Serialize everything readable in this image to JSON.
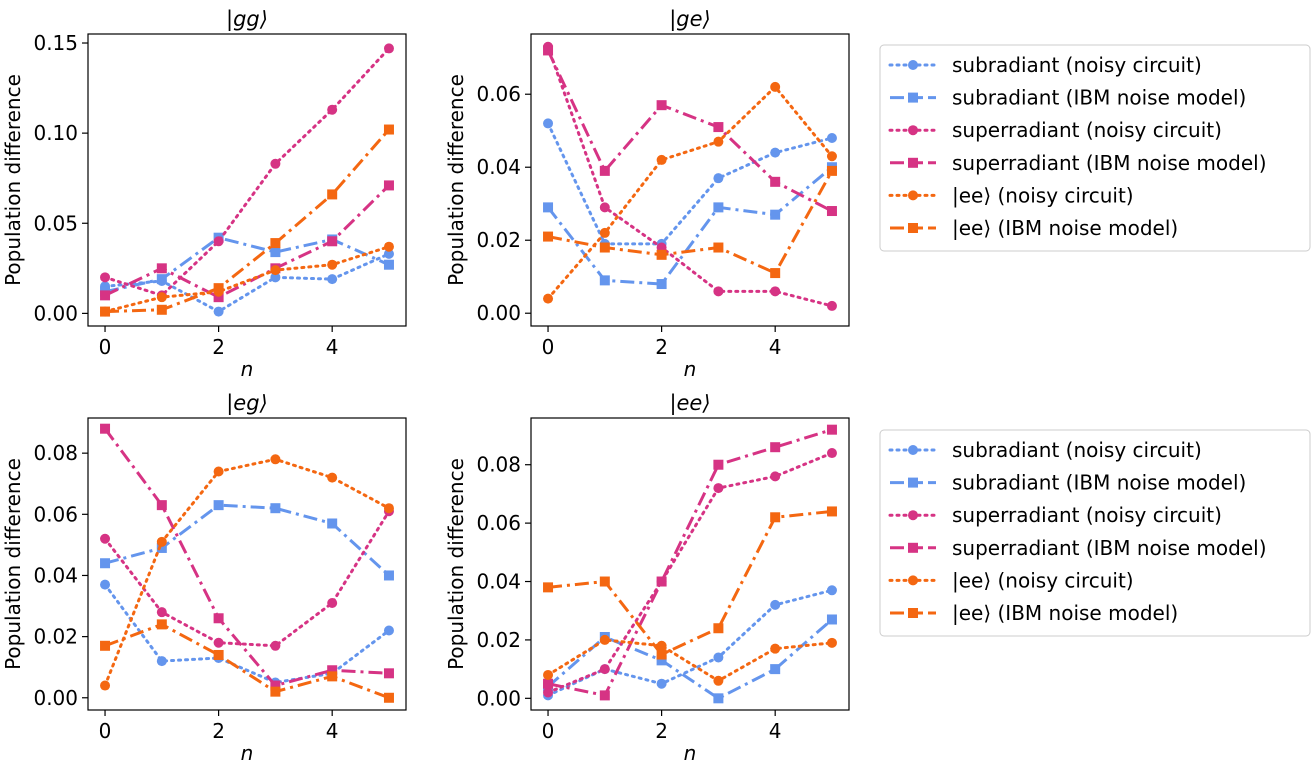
{
  "colors": {
    "subradiant": "#6495ED",
    "superradiant": "#D63384",
    "ee": "#F46711"
  },
  "legend": {
    "items": [
      {
        "label": "subradiant (noisy circuit)",
        "color": "#6495ED",
        "style": "dotted",
        "marker": "circle"
      },
      {
        "label": "subradiant (IBM noise model)",
        "color": "#6495ED",
        "style": "dashed",
        "marker": "square"
      },
      {
        "label": "superradiant (noisy circuit)",
        "color": "#D63384",
        "style": "dotted",
        "marker": "circle"
      },
      {
        "label": "superradiant (IBM noise model)",
        "color": "#D63384",
        "style": "dashed",
        "marker": "square"
      },
      {
        "label": "|ee⟩ (noisy circuit)",
        "color": "#F46711",
        "style": "dotted",
        "marker": "circle"
      },
      {
        "label": "|ee⟩ (IBM noise model)",
        "color": "#F46711",
        "style": "dashed",
        "marker": "square"
      }
    ]
  },
  "chart_data": [
    {
      "type": "line",
      "title": "|gg⟩",
      "xlabel": "n",
      "ylabel": "Population difference",
      "x": [
        0,
        1,
        2,
        3,
        4,
        5
      ],
      "xticks": [
        0,
        2,
        4
      ],
      "xlim": [
        -0.3,
        5.3
      ],
      "ylim": [
        -0.007,
        0.155
      ],
      "yticks": [
        "0.00",
        "0.05",
        "0.10",
        "0.15"
      ],
      "ytick_values": [
        0,
        0.05,
        0.1,
        0.15
      ],
      "series": [
        {
          "name": "subradiant (noisy circuit)",
          "color": "#6495ED",
          "style": "dotted",
          "marker": "circle",
          "values": [
            0.015,
            0.018,
            0.001,
            0.02,
            0.019,
            0.033
          ]
        },
        {
          "name": "subradiant (IBM noise model)",
          "color": "#6495ED",
          "style": "dashed",
          "marker": "square",
          "values": [
            0.012,
            0.019,
            0.042,
            0.034,
            0.041,
            0.027
          ]
        },
        {
          "name": "superradiant (noisy circuit)",
          "color": "#D63384",
          "style": "dotted",
          "marker": "circle",
          "values": [
            0.02,
            0.01,
            0.04,
            0.083,
            0.113,
            0.147
          ]
        },
        {
          "name": "superradiant (IBM noise model)",
          "color": "#D63384",
          "style": "dashed",
          "marker": "square",
          "values": [
            0.01,
            0.025,
            0.009,
            0.025,
            0.04,
            0.071
          ]
        },
        {
          "name": "|ee⟩ (noisy circuit)",
          "color": "#F46711",
          "style": "dotted",
          "marker": "circle",
          "values": [
            0.001,
            0.009,
            0.012,
            0.024,
            0.027,
            0.037
          ]
        },
        {
          "name": "|ee⟩ (IBM noise model)",
          "color": "#F46711",
          "style": "dashed",
          "marker": "square",
          "values": [
            0.001,
            0.002,
            0.014,
            0.039,
            0.066,
            0.102
          ]
        }
      ]
    },
    {
      "type": "line",
      "title": "|ge⟩",
      "xlabel": "n",
      "ylabel": "Population difference",
      "x": [
        0,
        1,
        2,
        3,
        4,
        5
      ],
      "xticks": [
        0,
        2,
        4
      ],
      "xlim": [
        -0.3,
        5.3
      ],
      "ylim": [
        -0.0035,
        0.0765
      ],
      "yticks": [
        "0.00",
        "0.02",
        "0.04",
        "0.06"
      ],
      "ytick_values": [
        0,
        0.02,
        0.04,
        0.06
      ],
      "series": [
        {
          "name": "subradiant (noisy circuit)",
          "color": "#6495ED",
          "style": "dotted",
          "marker": "circle",
          "values": [
            0.052,
            0.019,
            0.019,
            0.037,
            0.044,
            0.048
          ]
        },
        {
          "name": "subradiant (IBM noise model)",
          "color": "#6495ED",
          "style": "dashed",
          "marker": "square",
          "values": [
            0.029,
            0.009,
            0.008,
            0.029,
            0.027,
            0.04
          ]
        },
        {
          "name": "superradiant (noisy circuit)",
          "color": "#D63384",
          "style": "dotted",
          "marker": "circle",
          "values": [
            0.073,
            0.029,
            0.018,
            0.006,
            0.006,
            0.002
          ]
        },
        {
          "name": "superradiant (IBM noise model)",
          "color": "#D63384",
          "style": "dashed",
          "marker": "square",
          "values": [
            0.072,
            0.039,
            0.057,
            0.051,
            0.036,
            0.028
          ]
        },
        {
          "name": "|ee⟩ (noisy circuit)",
          "color": "#F46711",
          "style": "dotted",
          "marker": "circle",
          "values": [
            0.004,
            0.022,
            0.042,
            0.047,
            0.062,
            0.043
          ]
        },
        {
          "name": "|ee⟩ (IBM noise model)",
          "color": "#F46711",
          "style": "dashed",
          "marker": "square",
          "values": [
            0.021,
            0.018,
            0.016,
            0.018,
            0.011,
            0.039
          ]
        }
      ]
    },
    {
      "type": "line",
      "title": "|eg⟩",
      "xlabel": "n",
      "ylabel": "Population difference",
      "x": [
        0,
        1,
        2,
        3,
        4,
        5
      ],
      "xticks": [
        0,
        2,
        4
      ],
      "xlim": [
        -0.3,
        5.3
      ],
      "ylim": [
        -0.004,
        0.0915
      ],
      "yticks": [
        "0.00",
        "0.02",
        "0.04",
        "0.06",
        "0.08"
      ],
      "ytick_values": [
        0,
        0.02,
        0.04,
        0.06,
        0.08
      ],
      "series": [
        {
          "name": "subradiant (noisy circuit)",
          "color": "#6495ED",
          "style": "dotted",
          "marker": "circle",
          "values": [
            0.037,
            0.012,
            0.013,
            0.005,
            0.008,
            0.022
          ]
        },
        {
          "name": "subradiant (IBM noise model)",
          "color": "#6495ED",
          "style": "dashed",
          "marker": "square",
          "values": [
            0.044,
            0.049,
            0.063,
            0.062,
            0.057,
            0.04
          ]
        },
        {
          "name": "superradiant (noisy circuit)",
          "color": "#D63384",
          "style": "dotted",
          "marker": "circle",
          "values": [
            0.052,
            0.028,
            0.018,
            0.017,
            0.031,
            0.061
          ]
        },
        {
          "name": "superradiant (IBM noise model)",
          "color": "#D63384",
          "style": "dashed",
          "marker": "square",
          "values": [
            0.088,
            0.063,
            0.026,
            0.004,
            0.009,
            0.008
          ]
        },
        {
          "name": "|ee⟩ (noisy circuit)",
          "color": "#F46711",
          "style": "dotted",
          "marker": "circle",
          "values": [
            0.004,
            0.051,
            0.074,
            0.078,
            0.072,
            0.062
          ]
        },
        {
          "name": "|ee⟩ (IBM noise model)",
          "color": "#F46711",
          "style": "dashed",
          "marker": "square",
          "values": [
            0.017,
            0.024,
            0.014,
            0.002,
            0.007,
            0.0
          ]
        }
      ]
    },
    {
      "type": "line",
      "title": "|ee⟩",
      "xlabel": "n",
      "ylabel": "Population difference",
      "x": [
        0,
        1,
        2,
        3,
        4,
        5
      ],
      "xticks": [
        0,
        2,
        4
      ],
      "xlim": [
        -0.3,
        5.3
      ],
      "ylim": [
        -0.004,
        0.096
      ],
      "yticks": [
        "0.00",
        "0.02",
        "0.04",
        "0.06",
        "0.08"
      ],
      "ytick_values": [
        0,
        0.02,
        0.04,
        0.06,
        0.08
      ],
      "series": [
        {
          "name": "subradiant (noisy circuit)",
          "color": "#6495ED",
          "style": "dotted",
          "marker": "circle",
          "values": [
            0.001,
            0.01,
            0.005,
            0.014,
            0.032,
            0.037
          ]
        },
        {
          "name": "subradiant (IBM noise model)",
          "color": "#6495ED",
          "style": "dashed",
          "marker": "square",
          "values": [
            0.004,
            0.021,
            0.013,
            0.0,
            0.01,
            0.027
          ]
        },
        {
          "name": "superradiant (noisy circuit)",
          "color": "#D63384",
          "style": "dotted",
          "marker": "circle",
          "values": [
            0.002,
            0.01,
            0.04,
            0.072,
            0.076,
            0.084
          ]
        },
        {
          "name": "superradiant (IBM noise model)",
          "color": "#D63384",
          "style": "dashed",
          "marker": "square",
          "values": [
            0.005,
            0.001,
            0.04,
            0.08,
            0.086,
            0.092
          ]
        },
        {
          "name": "|ee⟩ (noisy circuit)",
          "color": "#F46711",
          "style": "dotted",
          "marker": "circle",
          "values": [
            0.008,
            0.02,
            0.018,
            0.006,
            0.017,
            0.019
          ]
        },
        {
          "name": "|ee⟩ (IBM noise model)",
          "color": "#F46711",
          "style": "dashed",
          "marker": "square",
          "values": [
            0.038,
            0.04,
            0.015,
            0.024,
            0.062,
            0.064
          ]
        }
      ]
    }
  ]
}
